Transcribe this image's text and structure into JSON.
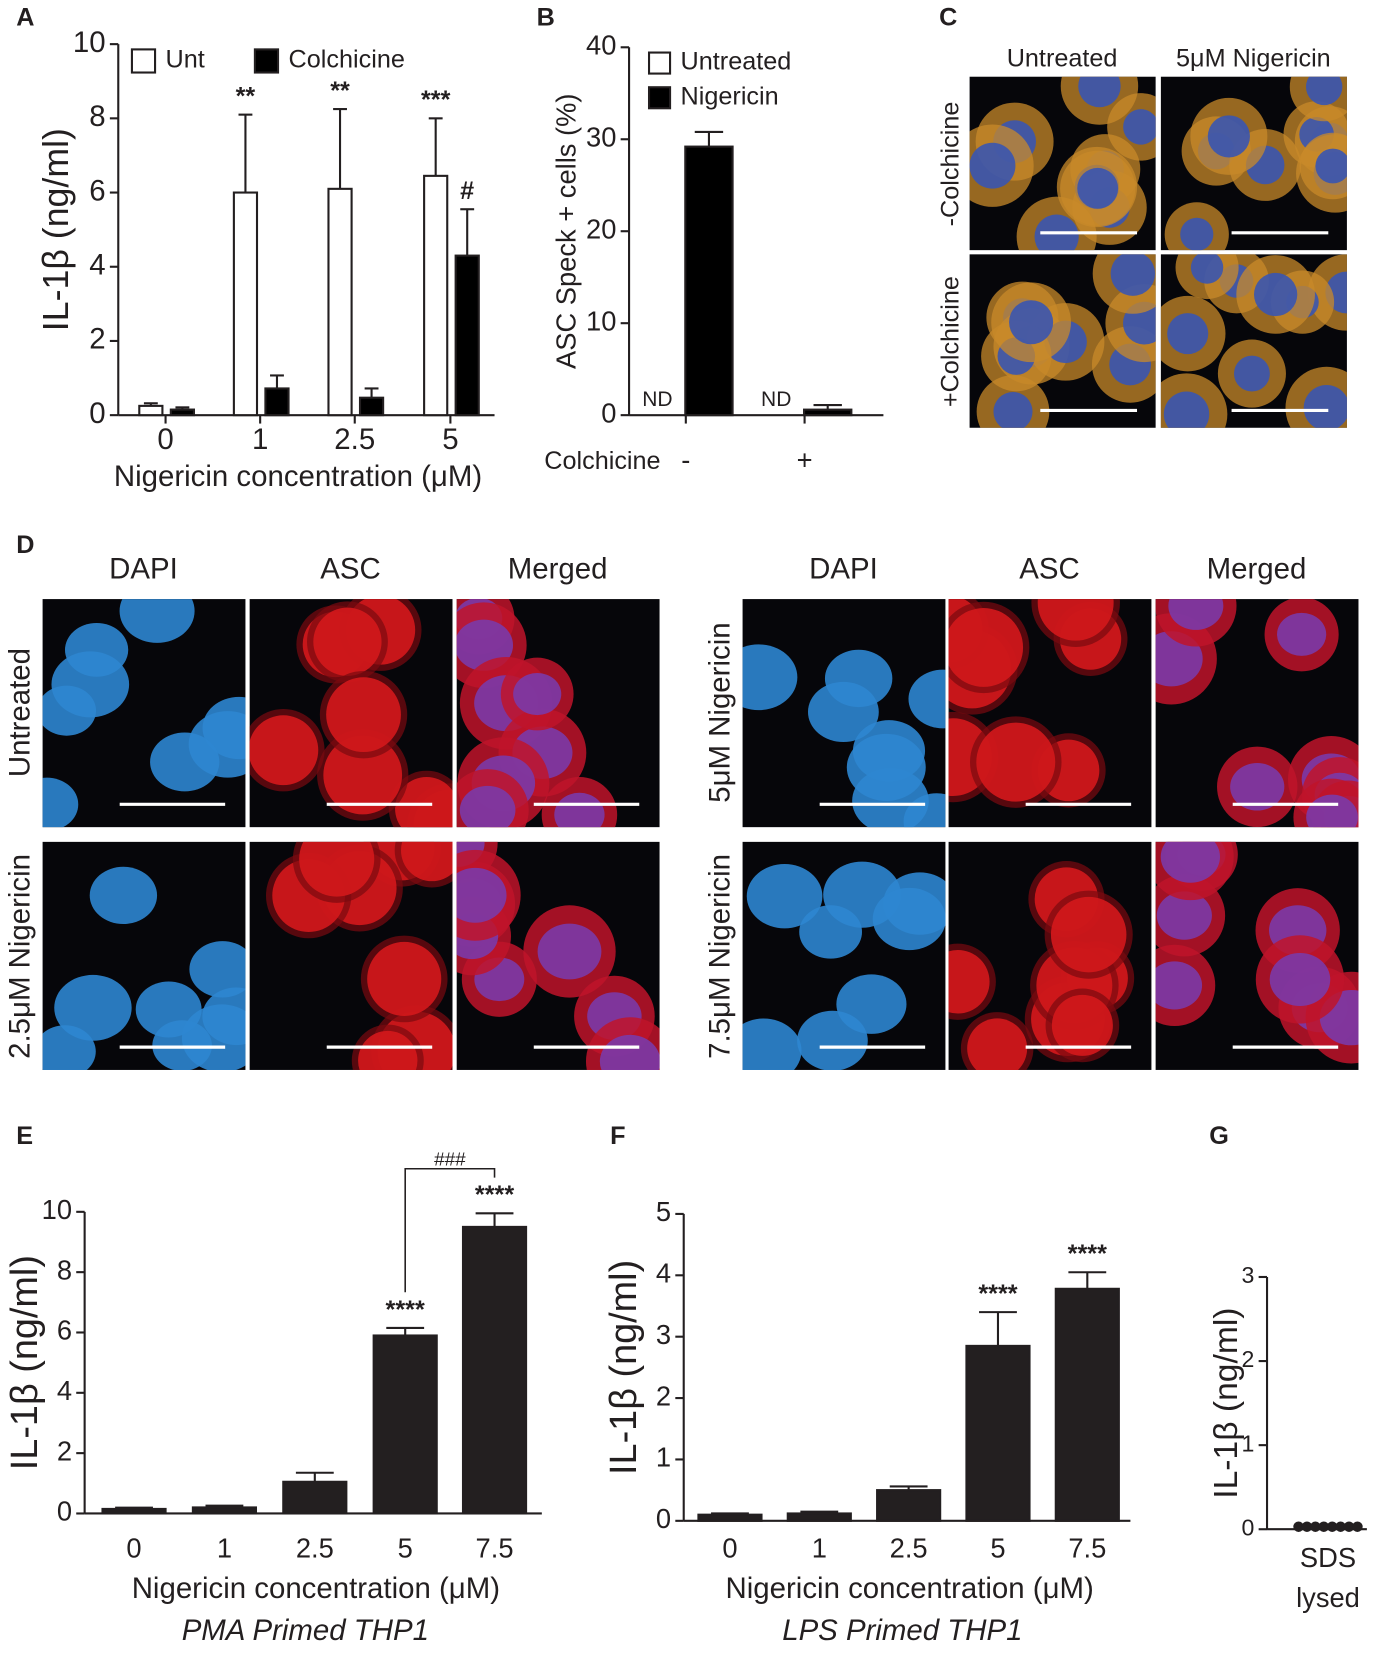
{
  "figure": {
    "panel_labels": [
      "A",
      "B",
      "C",
      "D",
      "E",
      "F",
      "G"
    ],
    "panel_c": {
      "columns": [
        "Untreated",
        "5μM Nigericin"
      ],
      "rows": [
        "-Colchicine",
        "+Colchicine"
      ]
    },
    "panel_d": {
      "columns": [
        "DAPI",
        "ASC",
        "Merged",
        "DAPI",
        "ASC",
        "Merged"
      ],
      "column_colors": [
        "#2a7fd4",
        "#e8202a",
        "#231f20",
        "#2a7fd4",
        "#e8202a",
        "#231f20"
      ],
      "rows": [
        "Untreated",
        "2.5μM Nigericin",
        "5μM Nigericin",
        "7.5μM Nigericin"
      ]
    }
  },
  "chart_data": [
    {
      "type": "bar",
      "ylabel": "IL-1β (ng/ml)",
      "xlabel": "Nigericin concentration (μM)",
      "categories": [
        "0",
        "1",
        "2.5",
        "5"
      ],
      "series": [
        {
          "name": "Unt",
          "color": "#ffffff",
          "values": [
            0.25,
            6.0,
            6.1,
            6.45
          ],
          "errors": [
            0.07,
            2.1,
            2.15,
            1.55
          ],
          "annotations": [
            null,
            "**",
            "**",
            "***"
          ]
        },
        {
          "name": "Colchicine",
          "color": "#000000",
          "values": [
            0.15,
            0.72,
            0.47,
            4.3
          ],
          "errors": [
            0.06,
            0.35,
            0.25,
            1.25
          ],
          "annotations": [
            null,
            null,
            null,
            "#"
          ]
        }
      ],
      "ylim": [
        0,
        10
      ],
      "yticks": [
        0,
        2,
        4,
        6,
        8,
        10
      ],
      "legend": "upper left"
    },
    {
      "type": "bar",
      "ylabel": "ASC Speck + cells (%)",
      "xlabel": "Colchicine",
      "categories": [
        "-",
        "+"
      ],
      "series": [
        {
          "name": "Untreated",
          "color": "#ffffff",
          "values": [
            null,
            null
          ],
          "value_labels": [
            "ND",
            "ND"
          ]
        },
        {
          "name": "Nigericin",
          "color": "#000000",
          "values": [
            29.2,
            0.6
          ],
          "errors": [
            1.6,
            0.5
          ]
        }
      ],
      "ylim": [
        0,
        40
      ],
      "yticks": [
        0,
        10,
        20,
        30,
        40
      ],
      "legend": "upper left"
    },
    {
      "type": "bar",
      "ylabel": "IL-1β (ng/ml)",
      "xlabel": "Nigericin concentration (μM)",
      "subtitle": "PMA Primed THP1",
      "categories": [
        "0",
        "1",
        "2.5",
        "5",
        "7.5"
      ],
      "color": "#231f20",
      "values": [
        0.15,
        0.2,
        1.05,
        5.9,
        9.5
      ],
      "errors": [
        0.04,
        0.06,
        0.3,
        0.25,
        0.45
      ],
      "annotations": [
        null,
        null,
        null,
        "****",
        "****"
      ],
      "comparison": {
        "between": [
          3,
          4
        ],
        "label": "###"
      },
      "ylim": [
        0,
        10
      ],
      "yticks": [
        0,
        2,
        4,
        6,
        8,
        10
      ]
    },
    {
      "type": "bar",
      "ylabel": "IL-1β (ng/ml)",
      "xlabel": "Nigericin concentration (μM)",
      "subtitle": "LPS Primed THP1",
      "categories": [
        "0",
        "1",
        "2.5",
        "5",
        "7.5"
      ],
      "color": "#231f20",
      "values": [
        0.1,
        0.12,
        0.5,
        2.85,
        3.78
      ],
      "errors": [
        0.02,
        0.03,
        0.06,
        0.55,
        0.27
      ],
      "annotations": [
        null,
        null,
        null,
        "****",
        "****"
      ],
      "ylim": [
        0,
        5
      ],
      "yticks": [
        0,
        1,
        2,
        3,
        4,
        5
      ]
    },
    {
      "type": "scatter",
      "ylabel": "IL-1β (ng/ml)",
      "categories": [
        "SDS lysed"
      ],
      "color": "#231f20",
      "values": [
        0.03,
        0.03,
        0.03,
        0.03,
        0.03,
        0.03,
        0.03,
        0.03
      ],
      "ylim": [
        0,
        3
      ],
      "yticks": [
        0,
        1,
        2,
        3
      ]
    }
  ]
}
